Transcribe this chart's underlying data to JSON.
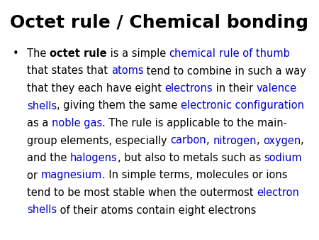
{
  "title": "Octet rule / Chemical bonding",
  "background_color": "#ffffff",
  "title_color": "#000000",
  "title_fontsize": 18,
  "body_fontsize": 10.5,
  "text_color": "#000000",
  "link_color": "#0000cc",
  "bullet": "•",
  "body_lines": [
    [
      [
        "The ",
        false,
        false
      ],
      [
        "octet rule",
        true,
        false
      ],
      [
        " is a simple ",
        false,
        false
      ],
      [
        "chemical",
        false,
        true
      ],
      [
        " ",
        false,
        false
      ],
      [
        "rule of thumb",
        false,
        true
      ]
    ],
    [
      [
        "that states that ",
        false,
        false
      ],
      [
        "atoms",
        false,
        true
      ],
      [
        " tend to combine in such a way",
        false,
        false
      ]
    ],
    [
      [
        "that they each have eight ",
        false,
        false
      ],
      [
        "electrons",
        false,
        true
      ],
      [
        " in their ",
        false,
        false
      ],
      [
        "valence",
        false,
        true
      ]
    ],
    [
      [
        "shells",
        false,
        true
      ],
      [
        ", giving them the same ",
        false,
        false
      ],
      [
        "electronic configuration",
        false,
        true
      ]
    ],
    [
      [
        "as a ",
        false,
        false
      ],
      [
        "noble gas",
        false,
        true
      ],
      [
        ". The rule is applicable to the main-",
        false,
        false
      ]
    ],
    [
      [
        "group elements, especially ",
        false,
        false
      ],
      [
        "carbon",
        false,
        true
      ],
      [
        ", ",
        false,
        false
      ],
      [
        "nitrogen",
        false,
        true
      ],
      [
        ", ",
        false,
        false
      ],
      [
        "oxygen",
        false,
        true
      ],
      [
        ",",
        false,
        false
      ]
    ],
    [
      [
        "and the ",
        false,
        false
      ],
      [
        "halogens",
        false,
        true
      ],
      [
        ", but also to metals such as ",
        false,
        false
      ],
      [
        "sodium",
        false,
        true
      ]
    ],
    [
      [
        "or ",
        false,
        false
      ],
      [
        "magnesium",
        false,
        true
      ],
      [
        ". In simple terms, molecules or ions",
        false,
        false
      ]
    ],
    [
      [
        "tend to be most stable when the outermost ",
        false,
        false
      ],
      [
        "electron",
        false,
        true
      ]
    ],
    [
      [
        "shells",
        false,
        true
      ],
      [
        " of their atoms contain eight electrons",
        false,
        false
      ]
    ]
  ]
}
